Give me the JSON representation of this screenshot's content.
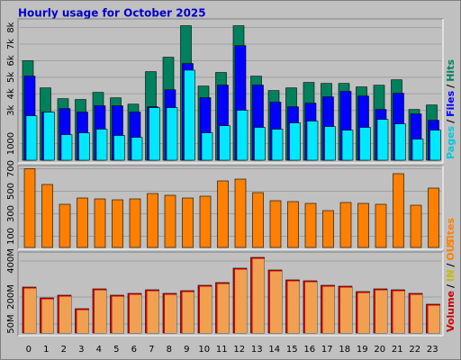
{
  "chart_data": {
    "type": "bar",
    "title": "Hourly usage for October 2025",
    "categories": [
      "0",
      "1",
      "2",
      "3",
      "4",
      "5",
      "6",
      "7",
      "8",
      "9",
      "10",
      "11",
      "12",
      "13",
      "14",
      "15",
      "16",
      "17",
      "18",
      "19",
      "20",
      "21",
      "22",
      "23"
    ],
    "legend_separator": "/",
    "panels": [
      {
        "ylim": [
          0,
          8250
        ],
        "yticks": [
          {
            "value": 1000,
            "label": "1000"
          },
          {
            "value": 3000,
            "label": "3k"
          },
          {
            "value": 4000,
            "label": "4k"
          },
          {
            "value": 5000,
            "label": "5k"
          },
          {
            "value": 6000,
            "label": "6k"
          },
          {
            "value": 7000,
            "label": "7k"
          },
          {
            "value": 8000,
            "label": "8k"
          }
        ],
        "legend": [
          {
            "text": "Pages",
            "color": "#00c8e0"
          },
          {
            "text": "Files",
            "color": "#0000ff"
          },
          {
            "text": "Hits",
            "color": "#00805c"
          }
        ],
        "series": [
          {
            "color": "#00805c",
            "values": [
              6000,
              4360,
              3710,
              3660,
              4090,
              3760,
              3380,
              5340,
              6210,
              8110,
              4470,
              5290,
              8110,
              5070,
              4200,
              4360,
              4690,
              4630,
              4630,
              4420,
              4520,
              4850,
              3060,
              3330
            ]
          },
          {
            "color": "#0000ff",
            "values": [
              5070,
              2900,
              3110,
              2900,
              3280,
              3280,
              2900,
              3220,
              4250,
              5830,
              3770,
              4530,
              6910,
              4530,
              3500,
              3220,
              3440,
              3820,
              4150,
              3870,
              3060,
              4040,
              2790,
              2410
            ]
          },
          {
            "color": "#00e8ff",
            "values": [
              2680,
              2900,
              1540,
              1650,
              1870,
              1490,
              1380,
              3170,
              3170,
              5430,
              1650,
              2080,
              3010,
              1980,
              1870,
              2250,
              2360,
              2030,
              1810,
              1980,
              2460,
              2190,
              1270,
              1810
            ]
          }
        ]
      },
      {
        "ylim": [
          0,
          712
        ],
        "yticks": [
          100,
          300,
          500,
          700
        ],
        "legend": [
          {
            "text": "Sites",
            "color": "#ff8000"
          }
        ],
        "series": [
          {
            "color": "#ff8000",
            "values": [
              700,
              560,
              384,
              440,
              432,
              424,
              432,
              480,
              464,
              440,
              456,
              592,
              608,
              488,
              416,
              408,
              392,
              328,
              400,
              392,
              384,
              656,
              376,
              528
            ]
          }
        ]
      },
      {
        "ylim": [
          0,
          440
        ],
        "yticks": [
          {
            "value": 50,
            "label": "50M"
          },
          {
            "value": 200,
            "label": "200M"
          },
          {
            "value": 400,
            "label": "400M"
          }
        ],
        "legend": [
          {
            "text": "Volume",
            "color": "#cc0000"
          },
          {
            "text": "IN",
            "color": "#c0c000"
          },
          {
            "text": "OUT",
            "color": "#ff8000"
          }
        ],
        "series": [
          {
            "color": "#dd0000",
            "inner_color": "#f0a050",
            "values": [
              255,
              195,
              210,
              135,
              245,
              210,
              220,
              240,
              220,
              235,
              265,
              280,
              360,
              420,
              350,
              295,
              290,
              265,
              260,
              230,
              245,
              240,
              220,
              160
            ]
          }
        ]
      }
    ]
  }
}
